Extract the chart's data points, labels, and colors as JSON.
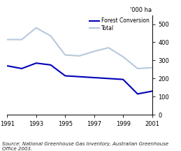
{
  "years": [
    1991,
    1992,
    1993,
    1994,
    1995,
    1996,
    1997,
    1998,
    1999,
    2000,
    2001
  ],
  "forest_conversion": [
    270,
    255,
    285,
    275,
    215,
    210,
    205,
    200,
    195,
    115,
    130
  ],
  "total": [
    415,
    415,
    480,
    435,
    330,
    325,
    350,
    370,
    320,
    255,
    260
  ],
  "forest_color": "#0000BB",
  "total_color": "#B8C8DD",
  "ylabel": "'000 ha",
  "ylim": [
    0,
    550
  ],
  "yticks": [
    0,
    100,
    200,
    300,
    400,
    500
  ],
  "xlim": [
    1991,
    2001
  ],
  "xticks": [
    1991,
    1993,
    1995,
    1997,
    1999,
    2001
  ],
  "legend_labels": [
    "Forest Conversion",
    "Total"
  ],
  "source_text": "Source: National Greenhouse Gas Inventory, Australian Greenhouse\nOffice 2003.",
  "linewidth": 1.5
}
